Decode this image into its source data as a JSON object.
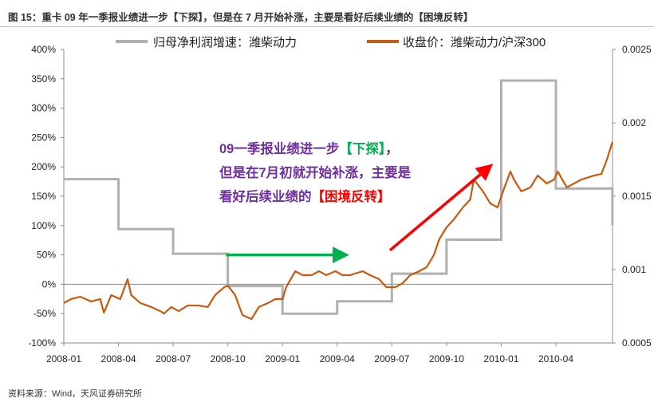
{
  "title": "图 15：重卡 09 年一季报业绩进一步【下探】，但是在 7 月开始补涨，主要是看好后续业绩的【困境反转】",
  "footer": "资料来源：Wind，天风证券研究所",
  "annotation": {
    "line1": "09一季报业绩进一步",
    "line1_hl": "【下探】",
    "line1_end": "，",
    "line2": "但是在7月初就开始补涨，主要是",
    "line3": "看好后续业绩的",
    "line3_hl": "【困境反转】"
  },
  "colors": {
    "gray": "#b0b0b0",
    "orange": "#c55a11",
    "purple": "#7030A0",
    "green": "#00b050",
    "red": "#ff0000"
  },
  "chart_data": {
    "type": "line",
    "x_unit": "months since 2008-01",
    "x_ticks": [
      "2008-01",
      "2008-04",
      "2008-07",
      "2008-10",
      "2009-01",
      "2009-04",
      "2009-07",
      "2009-10",
      "2010-01",
      "2010-04"
    ],
    "xlim": [
      0,
      30.1
    ],
    "y_left": {
      "ticks": [
        "400%",
        "350%",
        "300%",
        "250%",
        "200%",
        "150%",
        "100%",
        "50%",
        "0%",
        "-50%",
        "-100%"
      ],
      "lim": [
        -100,
        400
      ]
    },
    "y_right": {
      "ticks": [
        "0.0025",
        "0.002",
        "0.0015",
        "0.001",
        "0.0005"
      ],
      "lim": [
        0.0005,
        0.0025
      ]
    },
    "series": [
      {
        "name": "归母净利润增速：潍柴动力",
        "axis": "left",
        "step": true,
        "x": [
          0,
          3,
          6,
          9,
          12,
          15,
          18,
          21,
          24,
          27,
          30,
          30.1
        ],
        "values": [
          179,
          94,
          52,
          -3,
          -50,
          -29,
          18,
          76,
          347,
          163,
          163,
          100
        ]
      },
      {
        "name": "收盘价：潍柴动力/沪深300",
        "axis": "right",
        "x": [
          0,
          0.4,
          0.9,
          1.5,
          2,
          2.2,
          2.6,
          3.1,
          3.5,
          3.7,
          4.2,
          4.8,
          5.3,
          5.5,
          5.9,
          6.3,
          6.8,
          7.4,
          7.9,
          8.3,
          8.8,
          9,
          9.4,
          9.8,
          10.3,
          10.7,
          11.2,
          11.6,
          12,
          12.2,
          12.7,
          13.1,
          13.6,
          14,
          14.4,
          14.9,
          15.3,
          15.7,
          16.4,
          16.8,
          17.3,
          17.7,
          18.2,
          18.6,
          19,
          19.5,
          19.9,
          20.3,
          20.6,
          21,
          21.4,
          21.9,
          22.3,
          22.5,
          23,
          23.4,
          23.8,
          24.1,
          24.5,
          24.7,
          25.1,
          25.6,
          26,
          26.5,
          26.9,
          27.1,
          27.6,
          28,
          28.4,
          29.1,
          29.5,
          29.8,
          30.1
        ],
        "values": [
          0.000772,
          0.000799,
          0.000815,
          0.000783,
          0.000799,
          0.000707,
          0.000826,
          0.000799,
          0.000935,
          0.000826,
          0.000772,
          0.000745,
          0.000717,
          0.000701,
          0.000745,
          0.000717,
          0.000755,
          0.000755,
          0.000745,
          0.000826,
          0.00088,
          0.000891,
          0.000826,
          0.00069,
          0.000663,
          0.000745,
          0.000772,
          0.000799,
          0.000799,
          0.00088,
          0.000989,
          0.000962,
          0.000962,
          0.000989,
          0.000962,
          0.000989,
          0.000962,
          0.000962,
          0.000989,
          0.000962,
          0.000935,
          0.00088,
          0.00088,
          0.000908,
          0.000962,
          0.000989,
          0.001016,
          0.001098,
          0.001207,
          0.001288,
          0.001342,
          0.001424,
          0.001478,
          0.001614,
          0.001533,
          0.001451,
          0.001424,
          0.001533,
          0.001668,
          0.001614,
          0.001533,
          0.00156,
          0.001641,
          0.001587,
          0.001614,
          0.001668,
          0.00156,
          0.001587,
          0.001614,
          0.001641,
          0.001652,
          0.00175,
          0.00187
        ]
      }
    ],
    "arrows": [
      {
        "color": "green",
        "from": [
          8.9,
          50
        ],
        "to": [
          15.2,
          50
        ]
      },
      {
        "color": "red",
        "from": [
          17.9,
          58
        ],
        "to": [
          23.2,
          196
        ]
      }
    ]
  }
}
